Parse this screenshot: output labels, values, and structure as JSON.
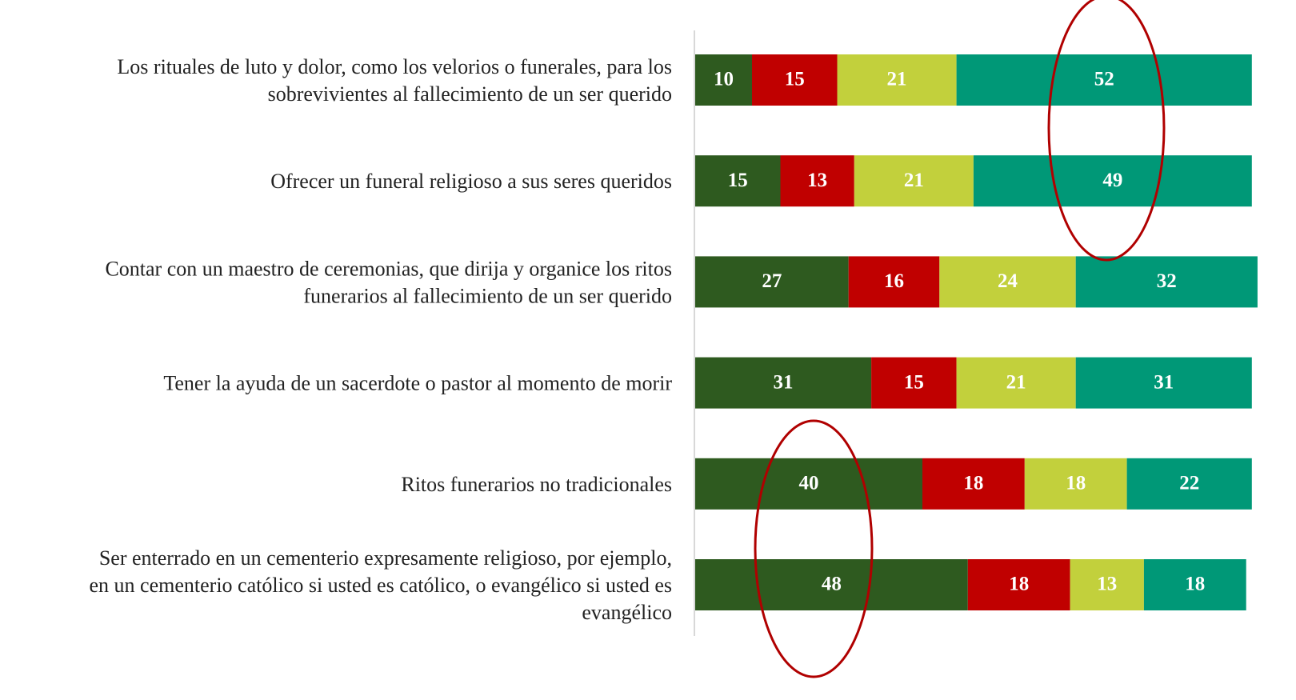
{
  "chart_data": {
    "type": "stacked-bar-horizontal",
    "categories": [
      [
        "Los rituales de luto y dolor, como los velorios o funerales, para los",
        "sobrevivientes al fallecimiento de un ser querido"
      ],
      [
        "Ofrecer un funeral religioso a sus seres queridos"
      ],
      [
        "Contar con un maestro de ceremonias, que dirija y organice los ritos",
        "funerarios al fallecimiento de un ser querido"
      ],
      [
        "Tener la ayuda de un sacerdote o pastor al momento de morir"
      ],
      [
        "Ritos funerarios no tradicionales"
      ],
      [
        "Ser enterrado en un cementerio expresamente religioso, por ejemplo,",
        "en un cementerio católico si usted es católico, o evangélico si usted es",
        "evangélico"
      ]
    ],
    "series": [
      {
        "color": "#2e5a1f",
        "values": [
          10,
          15,
          27,
          31,
          40,
          48
        ]
      },
      {
        "color": "#c00000",
        "values": [
          15,
          13,
          16,
          15,
          18,
          18
        ]
      },
      {
        "color": "#c2d03c",
        "values": [
          21,
          21,
          24,
          21,
          18,
          13
        ]
      },
      {
        "color": "#009877",
        "values": [
          52,
          49,
          32,
          31,
          22,
          18
        ]
      }
    ]
  }
}
